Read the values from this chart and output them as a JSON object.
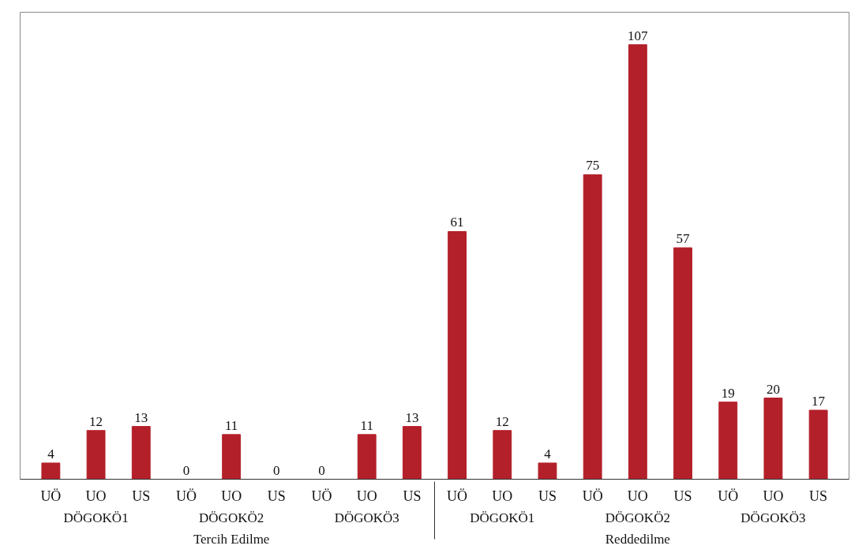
{
  "chart_data": {
    "type": "bar",
    "categories": [
      "UÖ",
      "UO",
      "US",
      "UÖ",
      "UO",
      "US",
      "UÖ",
      "UO",
      "US",
      "UÖ",
      "UO",
      "US",
      "UÖ",
      "UO",
      "US",
      "UÖ",
      "UO",
      "US"
    ],
    "values": [
      4,
      12,
      13,
      0,
      11,
      0,
      0,
      11,
      13,
      61,
      12,
      4,
      75,
      107,
      57,
      19,
      20,
      17
    ],
    "color": "#b3202a",
    "data_labels": true,
    "ylim": [
      0,
      115
    ],
    "tick_labels": "x",
    "annotations": [
      "DÖGOKÖ1",
      "DÖGOKÖ2",
      "DÖGOKÖ3",
      "DÖGOKÖ1",
      "DÖGOKÖ2",
      "DÖGOKÖ3",
      "Tercih Edilme",
      "Reddedilme"
    ]
  }
}
